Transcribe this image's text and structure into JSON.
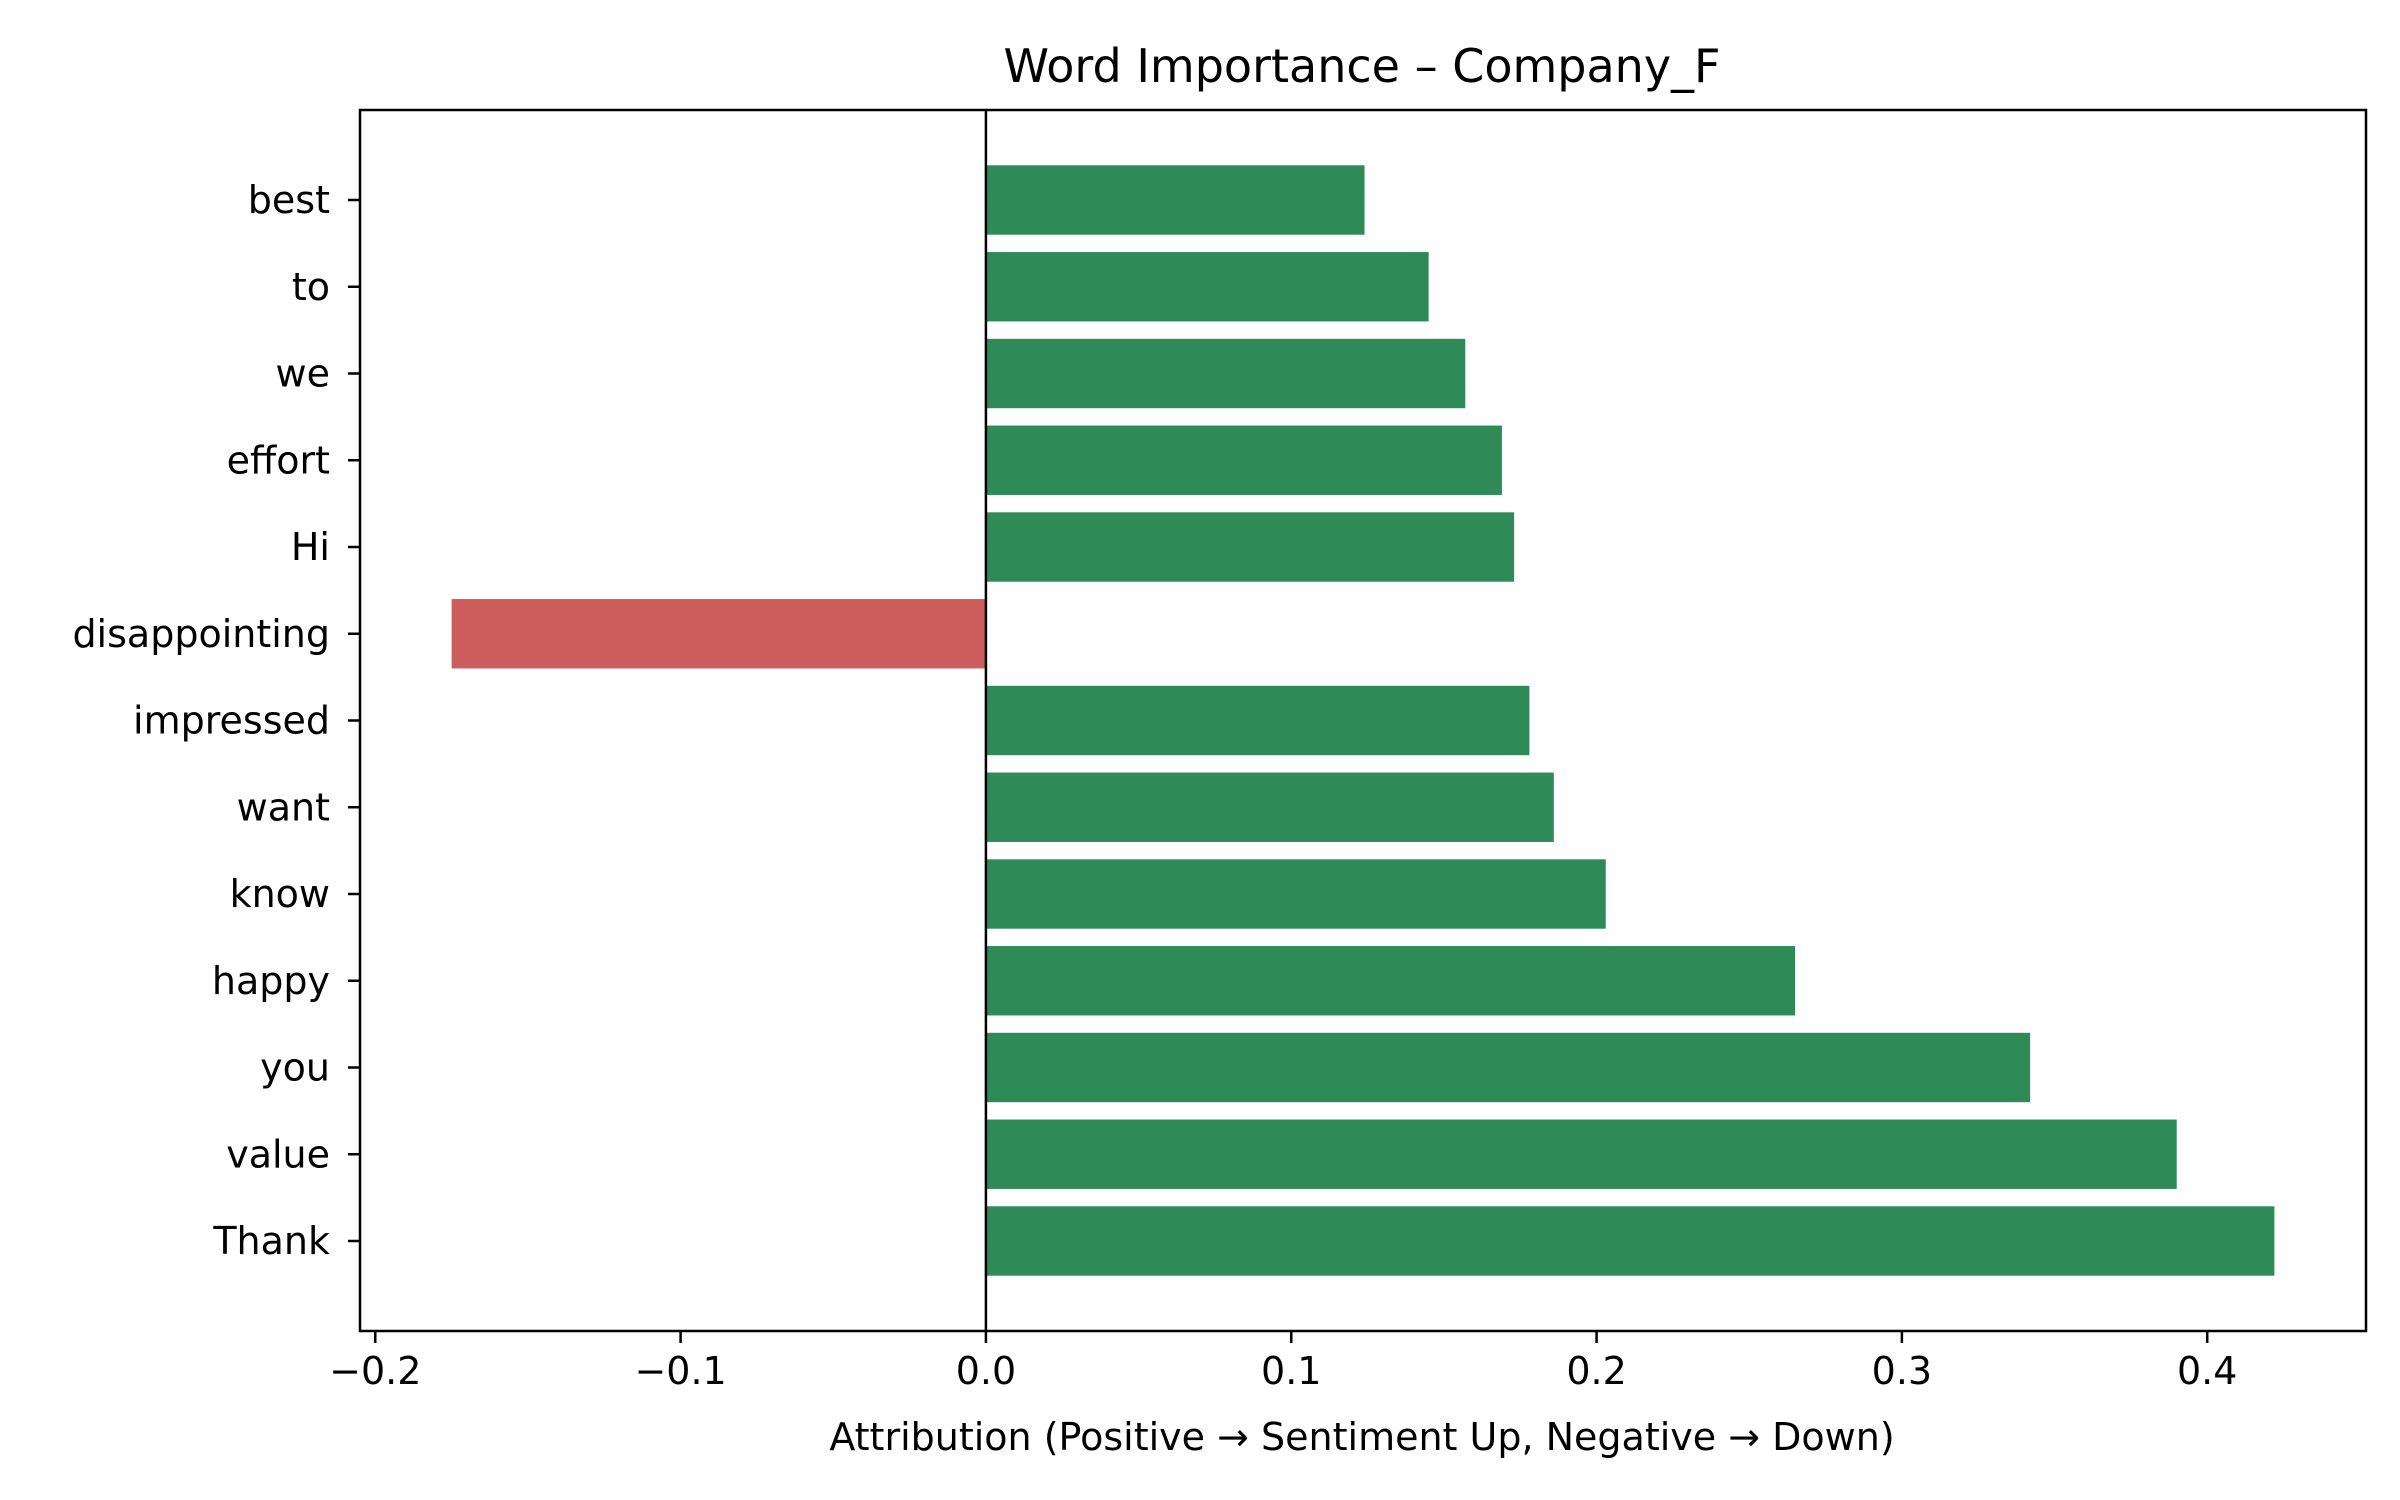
{
  "chart_data": {
    "type": "bar",
    "orientation": "horizontal",
    "title": "Word Importance – Company_F",
    "xlabel": "Attribution (Positive → Sentiment Up, Negative → Down)",
    "ylabel": "",
    "categories": [
      "best",
      "to",
      "we",
      "effort",
      "Hi",
      "disappointing",
      "impressed",
      "want",
      "know",
      "happy",
      "you",
      "value",
      "Thank"
    ],
    "values": [
      0.124,
      0.145,
      0.157,
      0.169,
      0.173,
      -0.175,
      0.178,
      0.186,
      0.203,
      0.265,
      0.342,
      0.39,
      0.422
    ],
    "xlim": [
      -0.205,
      0.452
    ],
    "xticks": [
      -0.2,
      -0.1,
      0.0,
      0.1,
      0.2,
      0.3,
      0.4
    ],
    "xtick_labels": [
      "−0.2",
      "−0.1",
      "0.0",
      "0.1",
      "0.2",
      "0.3",
      "0.4"
    ],
    "grid": false,
    "legend": "none",
    "colors": {
      "positive": "#2e8b57",
      "negative": "#cd5c5c",
      "zero_line": "#000000",
      "frame": "#000000"
    }
  }
}
